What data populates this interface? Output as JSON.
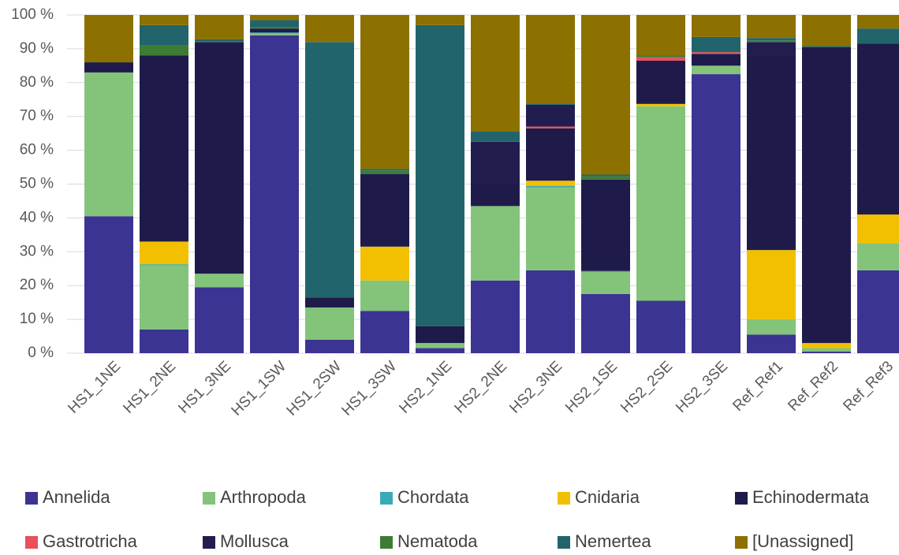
{
  "chart_data": {
    "type": "stacked_bar_100",
    "categories": [
      "HS1_1NE",
      "HS1_2NE",
      "HS1_3NE",
      "HS1_1SW",
      "HS1_2SW",
      "HS1_3SW",
      "HS2_1NE",
      "HS2_2NE",
      "HS2_3NE",
      "HS2_1SE",
      "HS2_2SE",
      "HS2_3SE",
      "Ref_Ref1",
      "Ref_Ref2",
      "Ref_Ref3"
    ],
    "series": [
      {
        "name": "Annelida",
        "color": "#3b3492",
        "values": [
          40.5,
          7,
          19.5,
          94,
          4,
          12.5,
          1.5,
          21.5,
          24.5,
          17.5,
          15.5,
          82.5,
          5.5,
          0.5,
          24.5
        ]
      },
      {
        "name": "Arthropoda",
        "color": "#83c47a",
        "values": [
          42.5,
          19,
          4,
          0.5,
          9.5,
          9,
          1.5,
          22,
          24.5,
          6.5,
          57.5,
          2.5,
          4.5,
          1,
          8
        ]
      },
      {
        "name": "Chordata",
        "color": "#3aaab8",
        "values": [
          0,
          0.3,
          0,
          0.3,
          0,
          0,
          0,
          0,
          0.5,
          0.3,
          0,
          0,
          0,
          0,
          0
        ]
      },
      {
        "name": "Cnidaria",
        "color": "#f2c000",
        "values": [
          0,
          6.7,
          0,
          0,
          0,
          10,
          0,
          0,
          1.5,
          0,
          0.7,
          0,
          20.5,
          1.5,
          8.5
        ]
      },
      {
        "name": "Echinodermata",
        "color": "#1e1b4b",
        "values": [
          3,
          55,
          68.5,
          1.2,
          3,
          21.5,
          5,
          6.5,
          15.5,
          27,
          12.8,
          3.5,
          57.5,
          87.5,
          50.5
        ]
      },
      {
        "name": "Gastrotricha",
        "color": "#e8505b",
        "values": [
          0,
          0,
          0,
          0,
          0,
          0,
          0,
          0,
          0.5,
          0,
          1,
          0.5,
          0,
          0,
          0
        ]
      },
      {
        "name": "Mollusca",
        "color": "#221d4f",
        "values": [
          0,
          0,
          0,
          0,
          0,
          0,
          0,
          12.5,
          6.5,
          0,
          0,
          0,
          4,
          0,
          0
        ]
      },
      {
        "name": "Nematoda",
        "color": "#3e7b35",
        "values": [
          0,
          3,
          0.3,
          0.5,
          0,
          1,
          0,
          0,
          0,
          1,
          0.5,
          0,
          0.5,
          0,
          0
        ]
      },
      {
        "name": "Nemertea",
        "color": "#22646b",
        "values": [
          0,
          6,
          0.5,
          2,
          75.5,
          0.5,
          89,
          3,
          0.3,
          0.5,
          0,
          4.5,
          0.7,
          0.3,
          4.5
        ]
      },
      {
        "name": "[Unassigned]",
        "color": "#8c7100",
        "values": [
          14,
          3,
          7.2,
          1.5,
          8,
          45.5,
          3,
          34.5,
          26.2,
          47.2,
          12,
          6.5,
          6.8,
          9.2,
          4
        ]
      }
    ],
    "ylim": [
      0,
      100
    ],
    "yticks": [
      {
        "value": 0,
        "label": "0 %"
      },
      {
        "value": 10,
        "label": "10 %"
      },
      {
        "value": 20,
        "label": "20 %"
      },
      {
        "value": 30,
        "label": "30 %"
      },
      {
        "value": 40,
        "label": "40 %"
      },
      {
        "value": 50,
        "label": "50 %"
      },
      {
        "value": 60,
        "label": "60 %"
      },
      {
        "value": 70,
        "label": "70 %"
      },
      {
        "value": 80,
        "label": "80 %"
      },
      {
        "value": 90,
        "label": "90 %"
      },
      {
        "value": 100,
        "label": "100 %"
      }
    ],
    "grid": true,
    "legend": "bottom"
  }
}
